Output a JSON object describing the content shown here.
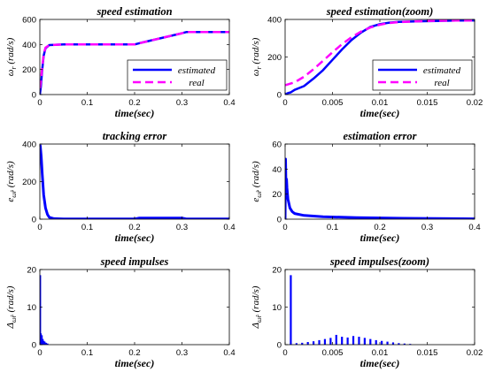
{
  "chart_data": [
    {
      "type": "line",
      "title": "speed estimation",
      "xlabel": "time(sec)",
      "ylabel": "ω_r (rad/s)",
      "xlim": [
        0,
        0.4
      ],
      "ylim": [
        0,
        600
      ],
      "xticks": [
        0,
        0.1,
        0.2,
        0.3,
        0.4
      ],
      "xtick_labels": [
        "0",
        "0.1",
        "0.2",
        "0.3",
        "0.4"
      ],
      "yticks": [
        0,
        200,
        400,
        600
      ],
      "ytick_labels": [
        "0",
        "200",
        "400",
        "600"
      ],
      "legend": "lower-right",
      "series": [
        {
          "name": "estimated",
          "color": "#0000ff",
          "style": "solid",
          "x": [
            0,
            0.002,
            0.005,
            0.008,
            0.012,
            0.02,
            0.05,
            0.1,
            0.2,
            0.21,
            0.3,
            0.31,
            0.4
          ],
          "y": [
            0,
            60,
            200,
            310,
            370,
            395,
            400,
            400,
            400,
            410,
            490,
            500,
            500
          ]
        },
        {
          "name": "real",
          "color": "#ff00ff",
          "style": "dashed",
          "x": [
            0,
            0.002,
            0.005,
            0.008,
            0.012,
            0.02,
            0.05,
            0.1,
            0.2,
            0.21,
            0.3,
            0.31,
            0.4
          ],
          "y": [
            50,
            100,
            220,
            320,
            375,
            395,
            400,
            400,
            400,
            410,
            490,
            500,
            500
          ]
        }
      ]
    },
    {
      "type": "line",
      "title": "speed estimation(zoom)",
      "xlabel": "time(sec)",
      "ylabel": "ω_r (rad/s)",
      "xlim": [
        0,
        0.02
      ],
      "ylim": [
        0,
        400
      ],
      "xticks": [
        0,
        0.005,
        0.01,
        0.015,
        0.02
      ],
      "xtick_labels": [
        "0",
        "0.005",
        "0.01",
        "0.015",
        "0.02"
      ],
      "yticks": [
        0,
        200,
        400
      ],
      "ytick_labels": [
        "0",
        "200",
        "400"
      ],
      "legend": "lower-right",
      "series": [
        {
          "name": "estimated",
          "color": "#0000ff",
          "style": "solid",
          "x": [
            0,
            0.0003,
            0.0006,
            0.001,
            0.002,
            0.003,
            0.004,
            0.005,
            0.006,
            0.007,
            0.008,
            0.009,
            0.01,
            0.011,
            0.012,
            0.014,
            0.016,
            0.018,
            0.02
          ],
          "y": [
            0,
            8,
            12,
            25,
            45,
            85,
            130,
            185,
            240,
            290,
            330,
            360,
            375,
            383,
            387,
            390,
            392,
            394,
            395
          ]
        },
        {
          "name": "real",
          "color": "#ff00ff",
          "style": "dashed",
          "x": [
            0,
            0.001,
            0.002,
            0.003,
            0.004,
            0.005,
            0.006,
            0.007,
            0.008,
            0.009,
            0.01,
            0.011,
            0.012,
            0.014,
            0.016,
            0.018,
            0.02
          ],
          "y": [
            50,
            65,
            95,
            135,
            180,
            225,
            268,
            305,
            335,
            357,
            372,
            381,
            386,
            390,
            393,
            394,
            395
          ]
        }
      ]
    },
    {
      "type": "line",
      "title": "tracking error",
      "xlabel": "time(sec)",
      "ylabel": "e_ω̂r (rad/s)",
      "xlim": [
        0,
        0.4
      ],
      "ylim": [
        0,
        400
      ],
      "xticks": [
        0,
        0.1,
        0.2,
        0.3,
        0.4
      ],
      "xtick_labels": [
        "0",
        "0.1",
        "0.2",
        "0.3",
        "0.4"
      ],
      "yticks": [
        0,
        200,
        400
      ],
      "ytick_labels": [
        "0",
        "200",
        "400"
      ],
      "series": [
        {
          "color": "#0000ff",
          "style": "solid",
          "width": 3,
          "x": [
            0,
            0.001,
            0.003,
            0.005,
            0.008,
            0.012,
            0.016,
            0.02,
            0.03,
            0.05,
            0.2,
            0.21,
            0.3,
            0.31,
            0.4
          ],
          "y": [
            395,
            390,
            330,
            240,
            130,
            60,
            25,
            10,
            3,
            1,
            1,
            6,
            6,
            1,
            1
          ]
        }
      ]
    },
    {
      "type": "line",
      "title": "estimation error",
      "xlabel": "time(sec)",
      "ylabel": "e_ω̃r (rad/s)",
      "xlim": [
        0,
        0.4
      ],
      "ylim": [
        0,
        60
      ],
      "xticks": [
        0,
        0.1,
        0.2,
        0.3,
        0.4
      ],
      "xtick_labels": [
        "0",
        "0.1",
        "0.2",
        "0.3",
        "0.4"
      ],
      "yticks": [
        0,
        20,
        40,
        60
      ],
      "ytick_labels": [
        "0",
        "20",
        "40",
        "60"
      ],
      "series": [
        {
          "color": "#0000ff",
          "style": "solid",
          "width": 3,
          "x": [
            0,
            0.001,
            0.002,
            0.003,
            0.004,
            0.006,
            0.01,
            0.015,
            0.02,
            0.04,
            0.08,
            0.15,
            0.25,
            0.4
          ],
          "y": [
            0,
            48,
            20,
            32,
            25,
            16,
            9,
            6,
            4.5,
            3,
            2,
            1.2,
            0.7,
            0.3
          ]
        }
      ]
    },
    {
      "type": "bar",
      "title": "speed impulses",
      "xlabel": "time(sec)",
      "ylabel": "Δ_ω̂r (rad/s)",
      "xlim": [
        0,
        0.4
      ],
      "ylim": [
        0,
        20
      ],
      "xticks": [
        0,
        0.1,
        0.2,
        0.3,
        0.4
      ],
      "xtick_labels": [
        "0",
        "0.1",
        "0.2",
        "0.3",
        "0.4"
      ],
      "yticks": [
        0,
        10,
        20
      ],
      "ytick_labels": [
        "0",
        "10",
        "20"
      ],
      "series": [
        {
          "color": "#0000ff",
          "x": [
            0.0006,
            0.002,
            0.004,
            0.006,
            0.008,
            0.01,
            0.013,
            0.016
          ],
          "y": [
            18.5,
            3,
            2.5,
            1.5,
            1,
            0.8,
            0.5,
            0.3
          ]
        }
      ]
    },
    {
      "type": "bar",
      "title": "speed impulses(zoom)",
      "xlabel": "time(sec)",
      "ylabel": "Δ_ω̂r (rad/s)",
      "xlim": [
        0,
        0.02
      ],
      "ylim": [
        0,
        20
      ],
      "xticks": [
        0,
        0.005,
        0.01,
        0.015,
        0.02
      ],
      "xtick_labels": [
        "0",
        "0.005",
        "0.01",
        "0.015",
        "0.02"
      ],
      "yticks": [
        0,
        10,
        20
      ],
      "ytick_labels": [
        "0",
        "10",
        "20"
      ],
      "series": [
        {
          "color": "#0000ff",
          "x": [
            0.0006,
            0.0012,
            0.0018,
            0.0024,
            0.003,
            0.0036,
            0.0042,
            0.0048,
            0.0054,
            0.006,
            0.0066,
            0.0072,
            0.0078,
            0.0084,
            0.009,
            0.0096,
            0.0102,
            0.0108,
            0.0114,
            0.012,
            0.0126,
            0.0132
          ],
          "y": [
            18.5,
            0.4,
            0.5,
            0.7,
            0.9,
            1.2,
            1.5,
            1.8,
            2.6,
            2.1,
            1.9,
            2.3,
            2.1,
            1.8,
            1.5,
            1.2,
            1.0,
            0.8,
            0.6,
            0.4,
            0.3,
            0.2
          ]
        }
      ]
    }
  ]
}
